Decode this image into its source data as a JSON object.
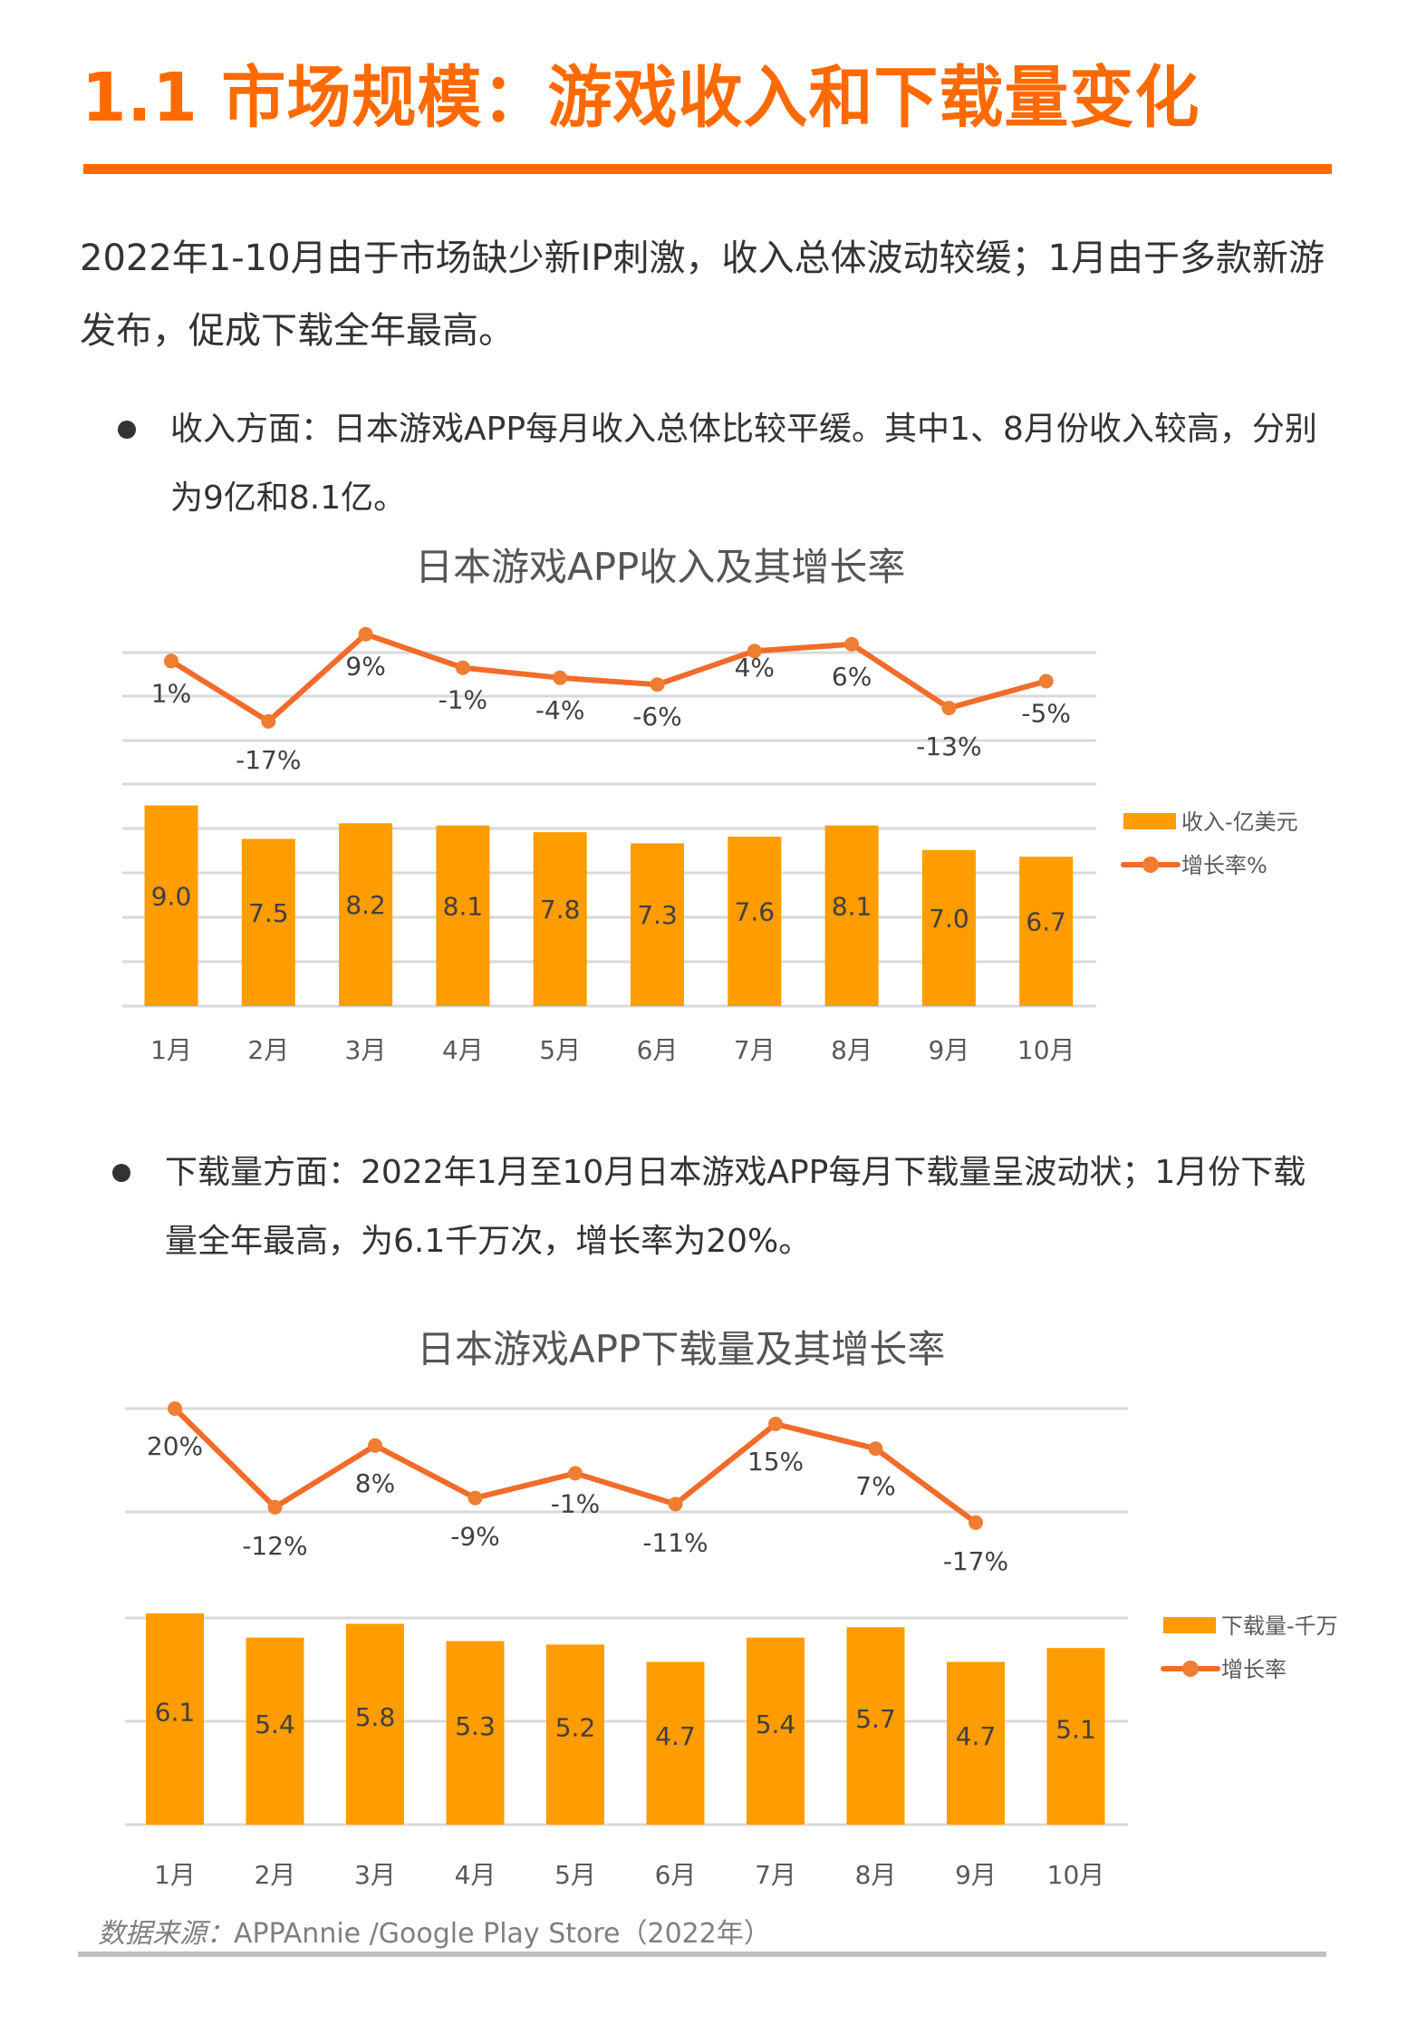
{
  "page": {
    "title": "1.1 市场规模：游戏收入和下载量变化",
    "intro": "2022年1-10月由于市场缺少新IP刺激，收入总体波动较缓；1月由于多款新游发布，促成下载全年最高。",
    "bullets": [
      {
        "text": "收入方面：日本游戏APP每月收入总体比较平缓。其中1、8月份收入较高，分别为9亿和8.1亿。"
      },
      {
        "text": "下载量方面：2022年1月至10月日本游戏APP每月下载量呈波动状；1月份下载量全年最高，为6.1千万次，增长率为20%。"
      }
    ],
    "source_label": "数据来源：",
    "source_text": "APPAnnie /Google Play Store（2022年）",
    "colors": {
      "accent": "#ff6a00",
      "bar": "#ff9c00",
      "line": "#f26b2a",
      "marker": "#ef7d32",
      "grid": "#d9d9d9"
    }
  },
  "chart_data": [
    {
      "type": "bar+line",
      "title": "日本游戏APP收入及其增长率",
      "categories": [
        "1月",
        "2月",
        "3月",
        "4月",
        "5月",
        "6月",
        "7月",
        "8月",
        "9月",
        "10月"
      ],
      "series": [
        {
          "name": "收入-亿美元",
          "type": "bar",
          "values": [
            9.0,
            7.5,
            8.2,
            8.1,
            7.8,
            7.3,
            7.6,
            8.1,
            7.0,
            6.7
          ],
          "labels": [
            "9.0",
            "7.5",
            "8.2",
            "8.1",
            "7.8",
            "7.3",
            "7.6",
            "8.1",
            "7.0",
            "6.7"
          ]
        },
        {
          "name": "增长率%",
          "type": "line",
          "values": [
            1,
            -17,
            9,
            -1,
            -4,
            -6,
            4,
            6,
            -13,
            -5
          ],
          "labels": [
            "1%",
            "-17%",
            "9%",
            "-1%",
            "-4%",
            "-6%",
            "4%",
            "6%",
            "-13%",
            "-5%"
          ]
        }
      ],
      "xlabel": "",
      "ylabel": "",
      "grid": true,
      "legend_position": "right"
    },
    {
      "type": "bar+line",
      "title": "日本游戏APP下载量及其增长率",
      "categories": [
        "1月",
        "2月",
        "3月",
        "4月",
        "5月",
        "6月",
        "7月",
        "8月",
        "9月",
        "10月"
      ],
      "series": [
        {
          "name": "下载量-千万",
          "type": "bar",
          "values": [
            6.1,
            5.4,
            5.8,
            5.3,
            5.2,
            4.7,
            5.4,
            5.7,
            4.7,
            5.1
          ],
          "labels": [
            "6.1",
            "5.4",
            "5.8",
            "5.3",
            "5.2",
            "4.7",
            "5.4",
            "5.7",
            "4.7",
            "5.1"
          ]
        },
        {
          "name": "增长率",
          "type": "line",
          "values": [
            20,
            -12,
            8,
            -9,
            -1,
            -11,
            15,
            7,
            -17,
            null
          ],
          "labels": [
            "20%",
            "-12%",
            "8%",
            "-9%",
            "-1%",
            "-11%",
            "15%",
            "7%",
            "-17%",
            ""
          ]
        }
      ],
      "xlabel": "",
      "ylabel": "",
      "grid": true,
      "legend_position": "right"
    }
  ]
}
